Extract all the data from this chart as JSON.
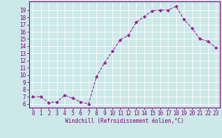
{
  "x": [
    0,
    1,
    2,
    3,
    4,
    5,
    6,
    7,
    8,
    9,
    10,
    11,
    12,
    13,
    14,
    15,
    16,
    17,
    18,
    19,
    20,
    21,
    22,
    23
  ],
  "y": [
    7.0,
    7.0,
    6.2,
    6.3,
    7.2,
    6.8,
    6.3,
    6.0,
    9.8,
    11.7,
    13.3,
    14.9,
    15.5,
    17.3,
    18.1,
    18.9,
    19.0,
    19.0,
    19.5,
    17.7,
    16.5,
    15.0,
    14.7,
    13.8
  ],
  "line_color": "#992299",
  "marker": "D",
  "marker_size": 2.2,
  "background_color": "#cce8e8",
  "grid_color": "#ffffff",
  "xlabel": "Windchill (Refroidissement éolien,°C)",
  "xlim": [
    -0.5,
    23.5
  ],
  "ylim": [
    5.5,
    20.2
  ],
  "yticks": [
    6,
    7,
    8,
    9,
    10,
    11,
    12,
    13,
    14,
    15,
    16,
    17,
    18,
    19
  ],
  "xticks": [
    0,
    1,
    2,
    3,
    4,
    5,
    6,
    7,
    8,
    9,
    10,
    11,
    12,
    13,
    14,
    15,
    16,
    17,
    18,
    19,
    20,
    21,
    22,
    23
  ],
  "label_color": "#800080",
  "label_fontsize": 5.5,
  "tick_fontsize": 5.5,
  "spine_color": "#800080",
  "linewidth": 0.8
}
